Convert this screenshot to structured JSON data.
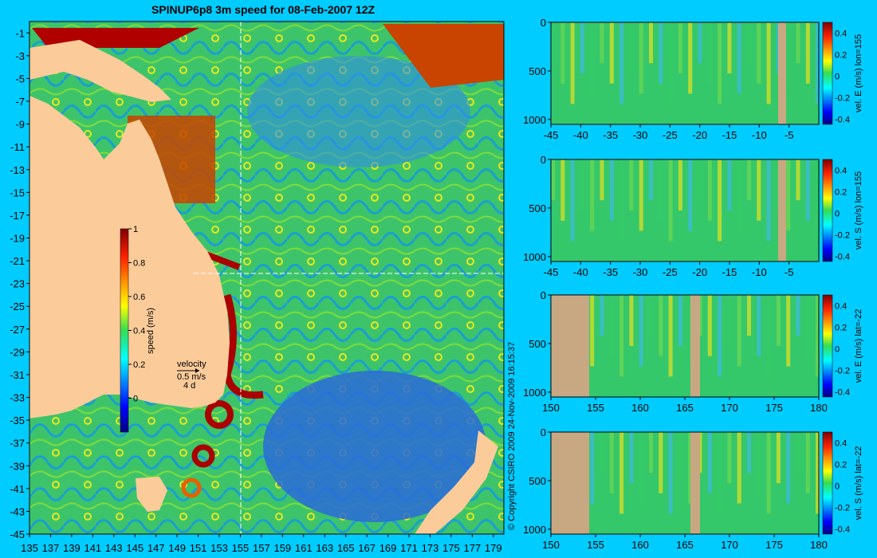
{
  "title": "SPINUP6p8 3m speed for 08-Feb-2007 12Z",
  "copyright": "© Copyright CSIRO 2009   24-Nov-2009 16:15:37",
  "chart_data": [
    {
      "type": "heatmap",
      "name": "map",
      "title": "SPINUP6p8 3m speed for 08-Feb-2007 12Z",
      "x_ticks": [
        "135",
        "137",
        "139",
        "141",
        "143",
        "145",
        "147",
        "149",
        "151",
        "153",
        "155",
        "157",
        "159",
        "161",
        "163",
        "165",
        "167",
        "169",
        "171",
        "173",
        "175",
        "177",
        "179"
      ],
      "y_ticks": [
        "-1",
        "-3",
        "-5",
        "-7",
        "-9",
        "-11",
        "-13",
        "-15",
        "-17",
        "-19",
        "-21",
        "-23",
        "-25",
        "-27",
        "-29",
        "-31",
        "-33",
        "-35",
        "-37",
        "-39",
        "-41",
        "-43",
        "-45"
      ],
      "xlim": [
        135,
        180
      ],
      "ylim": [
        -45,
        0
      ],
      "colorbar": {
        "label": "speed (m/s)",
        "ticks": [
          "0",
          "0.2",
          "0.4",
          "0.6",
          "0.8",
          "1"
        ],
        "range": [
          -0.2,
          1
        ]
      },
      "velocity_key": {
        "label": "velocity",
        "speed": "0.5 m/s",
        "time": "4 d"
      },
      "section_lines": {
        "lon": 155,
        "lat": -22
      }
    },
    {
      "type": "heatmap",
      "name": "velE-lon155",
      "colorbar_label": "vel. E (m/s) lon=155",
      "x_ticks": [
        "-45",
        "-40",
        "-35",
        "-30",
        "-25",
        "-20",
        "-15",
        "-10",
        "-5"
      ],
      "xlim": [
        -45,
        0
      ],
      "y_ticks": [
        "0",
        "500",
        "1000"
      ],
      "ylim": [
        1050,
        0
      ],
      "cbar_ticks": [
        "0.4",
        "0.2",
        "0",
        "-0.2",
        "-0.4"
      ],
      "crange": [
        -0.45,
        0.5
      ]
    },
    {
      "type": "heatmap",
      "name": "velS-lon155",
      "colorbar_label": "vel. S (m/s) lon=155",
      "x_ticks": [
        "-45",
        "-40",
        "-35",
        "-30",
        "-25",
        "-20",
        "-15",
        "-10",
        "-5"
      ],
      "xlim": [
        -45,
        0
      ],
      "y_ticks": [
        "0",
        "500",
        "1000"
      ],
      "ylim": [
        1050,
        0
      ],
      "cbar_ticks": [
        "0.4",
        "0.2",
        "0",
        "-0.2",
        "-0.4"
      ],
      "crange": [
        -0.45,
        0.5
      ]
    },
    {
      "type": "heatmap",
      "name": "velE-lat-22",
      "colorbar_label": "vel. E (m/s) lat=-22",
      "x_ticks": [
        "150",
        "155",
        "160",
        "165",
        "170",
        "175",
        "180"
      ],
      "xlim": [
        150,
        180
      ],
      "y_ticks": [
        "0",
        "500",
        "1000"
      ],
      "ylim": [
        1050,
        0
      ],
      "cbar_ticks": [
        "0.4",
        "0.2",
        "0",
        "-0.2",
        "-0.4"
      ],
      "crange": [
        -0.45,
        0.5
      ]
    },
    {
      "type": "heatmap",
      "name": "velS-lat-22",
      "colorbar_label": "vel. S (m/s) lat=-22",
      "x_ticks": [
        "150",
        "155",
        "160",
        "165",
        "170",
        "175",
        "180"
      ],
      "xlim": [
        150,
        180
      ],
      "y_ticks": [
        "0",
        "500",
        "1000"
      ],
      "ylim": [
        1050,
        0
      ],
      "cbar_ticks": [
        "0.4",
        "0.2",
        "0",
        "-0.2",
        "-0.4"
      ],
      "crange": [
        -0.45,
        0.5
      ]
    }
  ]
}
